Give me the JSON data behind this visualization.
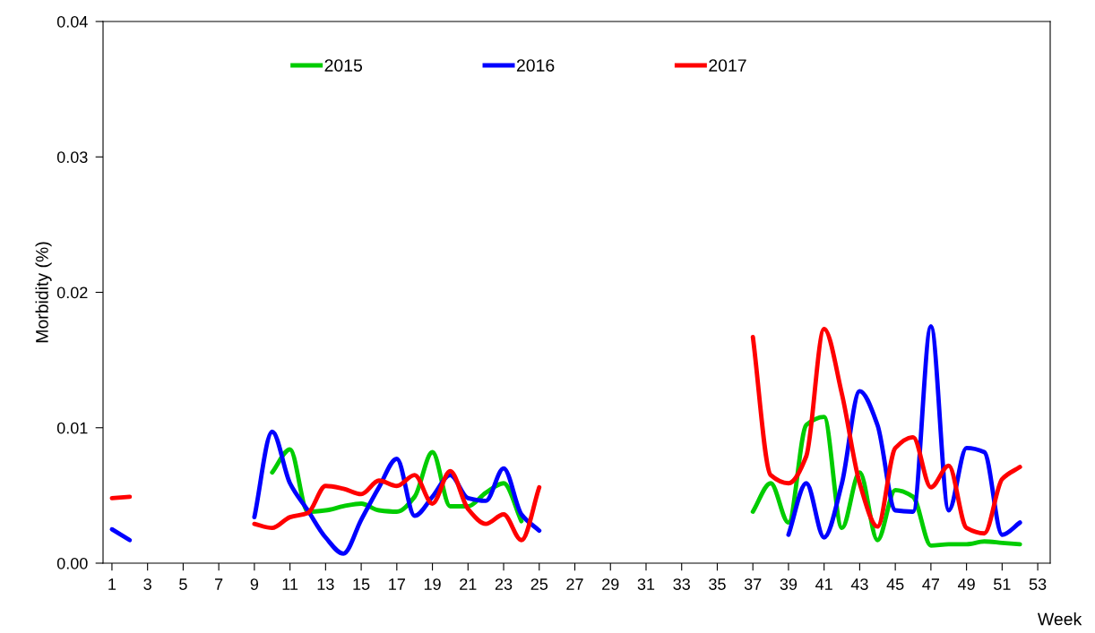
{
  "chart_data": {
    "type": "line",
    "xlabel": "Week",
    "ylabel": "Morbidity (%)",
    "x": [
      1,
      2,
      3,
      4,
      5,
      6,
      7,
      8,
      9,
      10,
      11,
      12,
      13,
      14,
      15,
      16,
      17,
      18,
      19,
      20,
      21,
      22,
      23,
      24,
      25,
      26,
      27,
      28,
      29,
      30,
      31,
      32,
      33,
      34,
      35,
      36,
      37,
      38,
      39,
      40,
      41,
      42,
      43,
      44,
      45,
      46,
      47,
      48,
      49,
      50,
      51,
      52
    ],
    "series": [
      {
        "name": "2015",
        "color": "#00cc00",
        "values": [
          null,
          null,
          null,
          null,
          null,
          null,
          null,
          null,
          null,
          0.0067,
          0.0084,
          0.0038,
          0.0039,
          0.0042,
          0.0044,
          0.0039,
          0.0038,
          0.0049,
          0.0082,
          0.0042,
          0.0042,
          0.0052,
          0.0059,
          0.0031,
          null,
          null,
          null,
          null,
          null,
          null,
          null,
          null,
          null,
          null,
          null,
          null,
          0.0038,
          0.0059,
          0.003,
          0.0102,
          0.0108,
          0.0026,
          0.0067,
          0.0017,
          0.0054,
          0.0049,
          0.0013,
          0.0014,
          0.0014,
          0.0016,
          0.0015,
          0.0014
        ]
      },
      {
        "name": "2016",
        "color": "#0000ff",
        "values": [
          0.0025,
          0.0017,
          null,
          null,
          null,
          null,
          null,
          null,
          0.0034,
          0.0097,
          0.0059,
          0.0039,
          0.0019,
          0.0007,
          0.0032,
          0.0056,
          0.0077,
          0.0035,
          0.0049,
          0.0065,
          0.0048,
          0.0046,
          0.007,
          0.0036,
          0.0024,
          null,
          null,
          null,
          null,
          null,
          null,
          null,
          null,
          null,
          null,
          null,
          null,
          null,
          0.0021,
          0.0059,
          0.0019,
          0.0059,
          0.0127,
          0.0102,
          0.0039,
          0.0038,
          0.0175,
          0.0039,
          0.0085,
          0.0082,
          0.0021,
          0.003
        ]
      },
      {
        "name": "2017",
        "color": "#ff0000",
        "values": [
          0.0048,
          0.0049,
          null,
          null,
          null,
          null,
          null,
          null,
          0.0029,
          0.0026,
          0.0034,
          0.0037,
          0.0057,
          0.0055,
          0.0051,
          0.0061,
          0.0057,
          0.0065,
          0.0044,
          0.0068,
          0.004,
          0.0029,
          0.0036,
          0.0017,
          0.0056,
          null,
          null,
          null,
          null,
          null,
          null,
          null,
          null,
          null,
          null,
          null,
          0.0167,
          0.0065,
          0.0059,
          0.0079,
          0.0173,
          0.0125,
          0.0059,
          0.0027,
          0.0085,
          0.0093,
          0.0056,
          0.0072,
          0.0026,
          0.0022,
          0.0062,
          0.0071
        ]
      }
    ],
    "xlim": [
      0.5,
      53.7
    ],
    "xticks": [
      1,
      3,
      5,
      7,
      9,
      11,
      13,
      15,
      17,
      19,
      21,
      23,
      25,
      27,
      29,
      31,
      33,
      35,
      37,
      39,
      41,
      43,
      45,
      47,
      49,
      51,
      53
    ],
    "ylim": [
      0,
      0.04
    ],
    "yticks": [
      {
        "value": 0,
        "label": "0.00"
      },
      {
        "value": 0.01,
        "label": "0.01"
      },
      {
        "value": 0.02,
        "label": "0.02"
      },
      {
        "value": 0.03,
        "label": "0.03"
      },
      {
        "value": 0.04,
        "label": "0.04"
      }
    ],
    "grid": false,
    "legend": "top",
    "marker": "none",
    "line_style": "solid"
  }
}
